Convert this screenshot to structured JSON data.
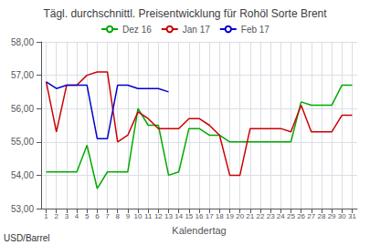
{
  "chart_data": {
    "type": "line",
    "title": "Tägl. durchschnittl. Preisentwicklung für Rohöl Sorte Brent",
    "xlabel": "Kalendertag",
    "ylabel": "USD/Barrel",
    "xlim": [
      0.5,
      31.5
    ],
    "xticks": [
      1,
      2,
      3,
      4,
      5,
      6,
      7,
      8,
      9,
      10,
      11,
      12,
      13,
      14,
      15,
      16,
      17,
      18,
      19,
      20,
      21,
      22,
      23,
      24,
      25,
      26,
      27,
      28,
      29,
      30,
      31
    ],
    "ylim": [
      53.0,
      58.0
    ],
    "yticks": [
      {
        "value": 53.0,
        "label": "53,00"
      },
      {
        "value": 54.0,
        "label": "54,00"
      },
      {
        "value": 55.0,
        "label": "55,00"
      },
      {
        "value": 56.0,
        "label": "56,00"
      },
      {
        "value": 57.0,
        "label": "57,00"
      },
      {
        "value": 58.0,
        "label": "58,00"
      }
    ],
    "grid": true,
    "legend": "top",
    "series": [
      {
        "name": "Dez 16",
        "color": "#00AA00",
        "x": [
          1,
          2,
          3,
          4,
          5,
          6,
          7,
          8,
          9,
          10,
          11,
          12,
          13,
          14,
          15,
          16,
          17,
          18,
          19,
          20,
          21,
          22,
          23,
          24,
          25,
          26,
          27,
          28,
          29,
          30,
          31
        ],
        "values": [
          54.1,
          54.1,
          54.1,
          54.1,
          54.9,
          53.6,
          54.1,
          54.1,
          54.1,
          56.0,
          55.5,
          55.5,
          54.0,
          54.1,
          55.4,
          55.4,
          55.2,
          55.2,
          55.0,
          55.0,
          55.0,
          55.0,
          55.0,
          55.0,
          55.0,
          56.2,
          56.1,
          56.1,
          56.1,
          56.7,
          56.7
        ]
      },
      {
        "name": "Jan 17",
        "color": "#CC0000",
        "x": [
          1,
          2,
          3,
          4,
          5,
          6,
          7,
          8,
          9,
          10,
          11,
          12,
          13,
          14,
          15,
          16,
          17,
          18,
          19,
          20,
          21,
          22,
          23,
          24,
          25,
          26,
          27,
          28,
          29,
          30,
          31
        ],
        "values": [
          56.8,
          55.3,
          56.7,
          56.7,
          57.0,
          57.1,
          57.1,
          55.0,
          55.2,
          55.9,
          55.7,
          55.4,
          55.4,
          55.4,
          55.7,
          55.7,
          55.5,
          55.2,
          54.0,
          54.0,
          55.4,
          55.4,
          55.4,
          55.4,
          55.3,
          56.1,
          55.3,
          55.3,
          55.3,
          55.8,
          55.8
        ]
      },
      {
        "name": "Feb 17",
        "color": "#0000CC",
        "x": [
          1,
          2,
          3,
          4,
          5,
          6,
          7,
          8,
          9,
          10,
          11,
          12,
          13
        ],
        "values": [
          56.8,
          56.6,
          56.7,
          56.7,
          56.7,
          55.1,
          55.1,
          56.7,
          56.7,
          56.6,
          56.6,
          56.6,
          56.5
        ]
      }
    ]
  }
}
